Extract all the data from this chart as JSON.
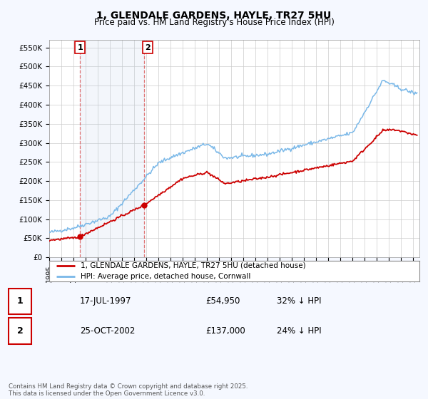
{
  "title": "1, GLENDALE GARDENS, HAYLE, TR27 5HU",
  "subtitle": "Price paid vs. HM Land Registry's House Price Index (HPI)",
  "ylabel_ticks": [
    "£0",
    "£50K",
    "£100K",
    "£150K",
    "£200K",
    "£250K",
    "£300K",
    "£350K",
    "£400K",
    "£450K",
    "£500K",
    "£550K"
  ],
  "ytick_values": [
    0,
    50000,
    100000,
    150000,
    200000,
    250000,
    300000,
    350000,
    400000,
    450000,
    500000,
    550000
  ],
  "ylim": [
    0,
    570000
  ],
  "xlim_start": 1995.0,
  "xlim_end": 2025.5,
  "hpi_color": "#7ab8e8",
  "property_color": "#cc0000",
  "background_color": "#f5f8ff",
  "plot_bg_color": "#ffffff",
  "sale1_x": 1997.54,
  "sale1_y": 54950,
  "sale1_label": "1",
  "sale2_x": 2002.81,
  "sale2_y": 137000,
  "sale2_label": "2",
  "legend_line1": "1, GLENDALE GARDENS, HAYLE, TR27 5HU (detached house)",
  "legend_line2": "HPI: Average price, detached house, Cornwall",
  "table_row1_num": "1",
  "table_row1_date": "17-JUL-1997",
  "table_row1_price": "£54,950",
  "table_row1_hpi": "32% ↓ HPI",
  "table_row2_num": "2",
  "table_row2_date": "25-OCT-2002",
  "table_row2_price": "£137,000",
  "table_row2_hpi": "24% ↓ HPI",
  "footer": "Contains HM Land Registry data © Crown copyright and database right 2025.\nThis data is licensed under the Open Government Licence v3.0.",
  "shaded_region_start": 1997.54,
  "shaded_region_end": 2002.81
}
